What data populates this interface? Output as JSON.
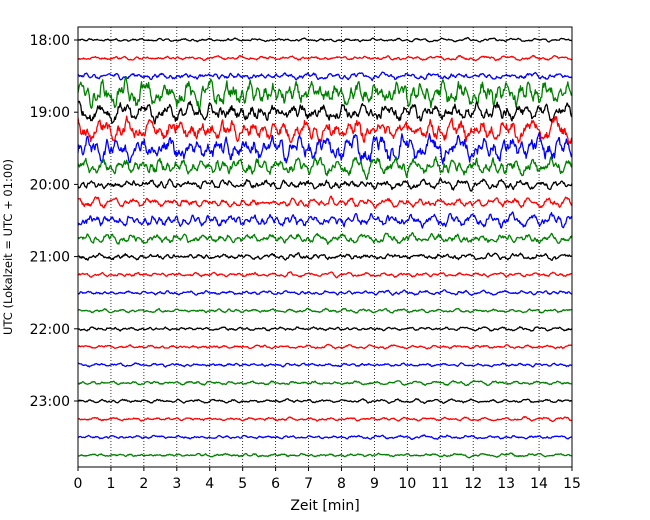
{
  "chart_data": {
    "type": "line",
    "title": "",
    "xlabel": "Zeit  [min]",
    "ylabel": "UTC (Lokalzeit = UTC + 01:00)",
    "xlim": [
      0,
      15
    ],
    "x_ticks": [
      "0",
      "1",
      "2",
      "3",
      "4",
      "5",
      "6",
      "7",
      "8",
      "9",
      "10",
      "11",
      "12",
      "13",
      "14",
      "15"
    ],
    "y_ticks": [
      "18:00",
      "19:00",
      "20:00",
      "21:00",
      "22:00",
      "23:00"
    ],
    "grid": "vertical dotted",
    "trace_minutes_per_row": 15,
    "row_colors": [
      "#000000",
      "#ff0000",
      "#0000ff",
      "#008000"
    ],
    "rows": [
      {
        "start": "18:00",
        "amplitude": 0.15
      },
      {
        "start": "18:15",
        "amplitude": 0.2
      },
      {
        "start": "18:30",
        "amplitude": 0.3
      },
      {
        "start": "18:45",
        "amplitude": 1.2
      },
      {
        "start": "19:00",
        "amplitude": 0.9
      },
      {
        "start": "19:15",
        "amplitude": 1.1
      },
      {
        "start": "19:30",
        "amplitude": 1.2
      },
      {
        "start": "19:45",
        "amplitude": 0.8
      },
      {
        "start": "20:00",
        "amplitude": 0.45
      },
      {
        "start": "20:15",
        "amplitude": 0.45
      },
      {
        "start": "20:30",
        "amplitude": 0.6
      },
      {
        "start": "20:45",
        "amplitude": 0.45
      },
      {
        "start": "21:00",
        "amplitude": 0.3
      },
      {
        "start": "21:15",
        "amplitude": 0.2
      },
      {
        "start": "21:30",
        "amplitude": 0.2
      },
      {
        "start": "21:45",
        "amplitude": 0.18
      },
      {
        "start": "22:00",
        "amplitude": 0.18
      },
      {
        "start": "22:15",
        "amplitude": 0.17
      },
      {
        "start": "22:30",
        "amplitude": 0.17
      },
      {
        "start": "22:45",
        "amplitude": 0.18
      },
      {
        "start": "23:00",
        "amplitude": 0.18
      },
      {
        "start": "23:15",
        "amplitude": 0.17
      },
      {
        "start": "23:30",
        "amplitude": 0.16
      },
      {
        "start": "23:45",
        "amplitude": 0.16
      }
    ]
  }
}
